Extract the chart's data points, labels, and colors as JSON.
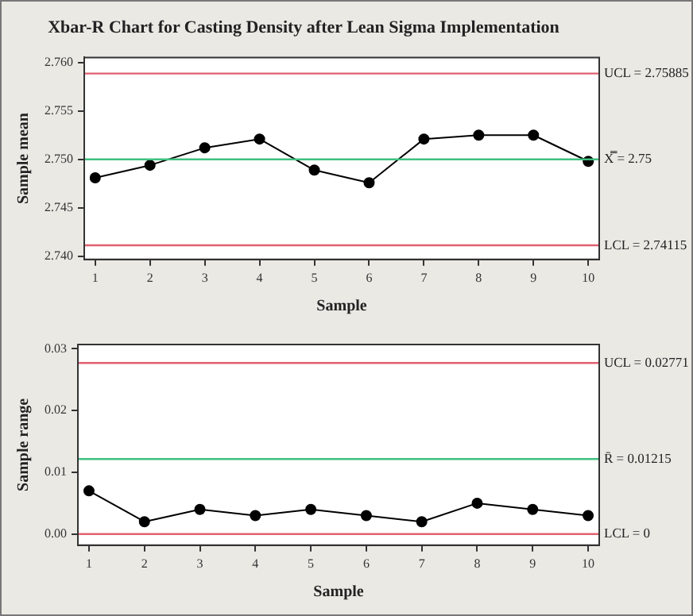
{
  "chart_data": [
    {
      "type": "line",
      "title": "Xbar-R Chart for Casting Density after Lean Sigma Implementation",
      "xlabel": "Sample",
      "ylabel": "Sample mean",
      "x": [
        1,
        2,
        3,
        4,
        5,
        6,
        7,
        8,
        9,
        10
      ],
      "series": [
        {
          "color": "#000000",
          "values": [
            2.7481,
            2.7494,
            2.7512,
            2.7521,
            2.7489,
            2.7476,
            2.7521,
            2.7525,
            2.7525,
            2.7498
          ]
        }
      ],
      "xlim": [
        0.8,
        10.2
      ],
      "xticks": [
        1,
        2,
        3,
        4,
        5,
        6,
        7,
        8,
        9,
        10
      ],
      "ylim": [
        2.7397,
        2.7605
      ],
      "yticks": [
        {
          "value": 2.74,
          "label": "2.740"
        },
        {
          "value": 2.745,
          "label": "2.745"
        },
        {
          "value": 2.75,
          "label": "2.750"
        },
        {
          "value": 2.755,
          "label": "2.755"
        },
        {
          "value": 2.76,
          "label": "2.760"
        }
      ],
      "ref_lines": [
        {
          "axis": "y",
          "value": 2.75885,
          "label": "UCL = 2.75885",
          "color": "#e06070"
        },
        {
          "axis": "y",
          "value": 2.75,
          "label": "X̿ = 2.75",
          "color": "#40c080"
        },
        {
          "axis": "y",
          "value": 2.74115,
          "label": "LCL = 2.74115",
          "color": "#e06070"
        }
      ],
      "grid": false,
      "legend": false,
      "marker": "circle",
      "line_style": "solid"
    },
    {
      "type": "line",
      "xlabel": "Sample",
      "ylabel": "Sample range",
      "x": [
        1,
        2,
        3,
        4,
        5,
        6,
        7,
        8,
        9,
        10
      ],
      "series": [
        {
          "color": "#000000",
          "values": [
            0.007,
            0.002,
            0.004,
            0.003,
            0.004,
            0.003,
            0.002,
            0.005,
            0.004,
            0.003
          ]
        }
      ],
      "xlim": [
        0.8,
        10.2
      ],
      "xticks": [
        1,
        2,
        3,
        4,
        5,
        6,
        7,
        8,
        9,
        10
      ],
      "ylim": [
        -0.0018,
        0.0307
      ],
      "yticks": [
        {
          "value": 0,
          "label": "0.00"
        },
        {
          "value": 0.01,
          "label": "0.01"
        },
        {
          "value": 0.02,
          "label": "0.02"
        },
        {
          "value": 0.03,
          "label": "0.03"
        }
      ],
      "ref_lines": [
        {
          "axis": "y",
          "value": 0.02771,
          "label": "UCL = 0.02771",
          "color": "#e06070"
        },
        {
          "axis": "y",
          "value": 0.01215,
          "label": "R̄ = 0.01215",
          "color": "#40c080"
        },
        {
          "axis": "y",
          "value": 0,
          "label": "LCL = 0",
          "color": "#e06070"
        }
      ],
      "grid": false,
      "legend": false,
      "marker": "circle",
      "line_style": "solid"
    }
  ]
}
